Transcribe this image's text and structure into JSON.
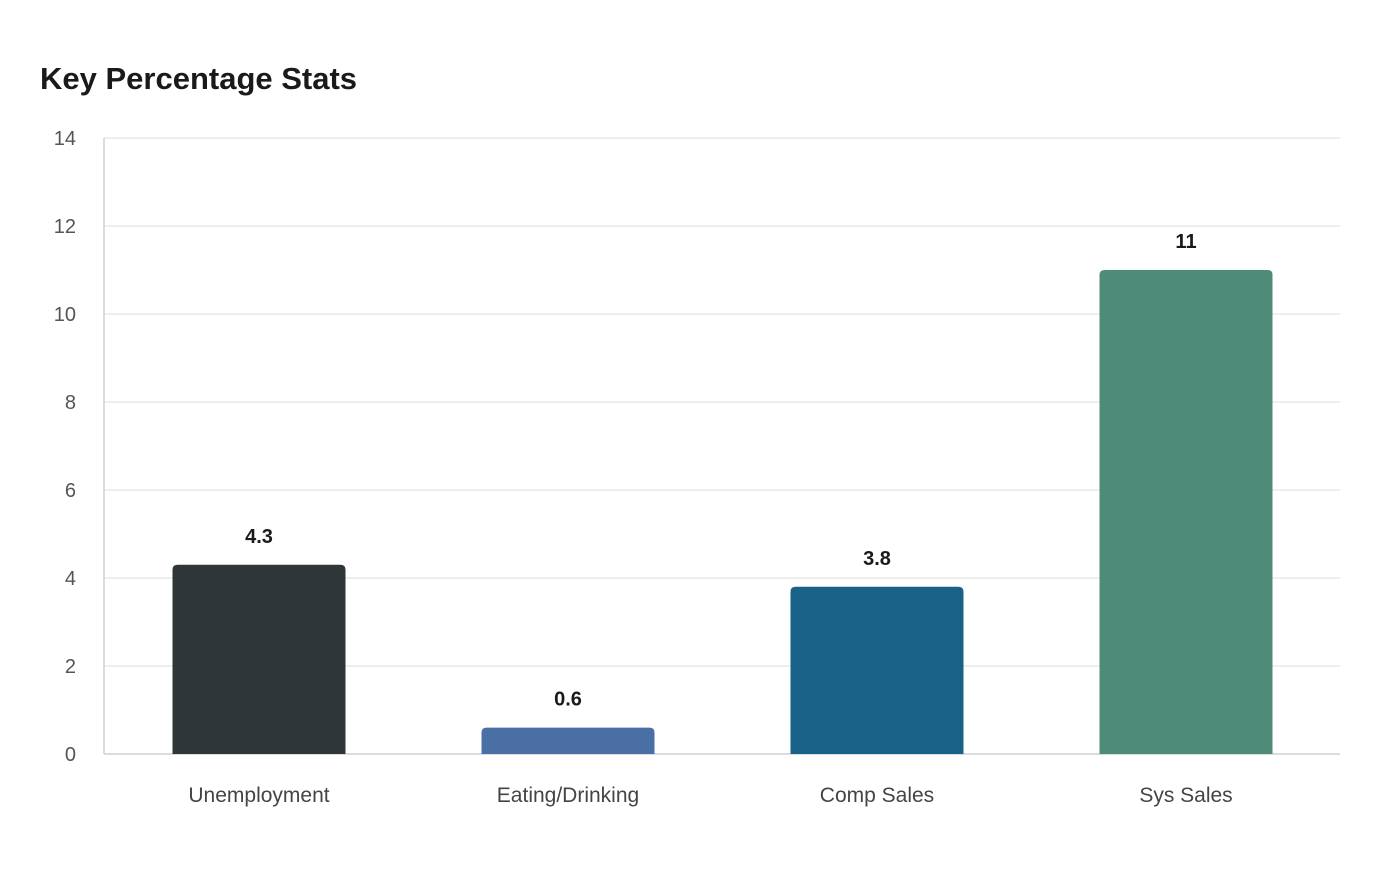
{
  "chart_data": {
    "type": "bar",
    "title": "Key Percentage Stats",
    "categories": [
      "Unemployment",
      "Eating/Drinking",
      "Comp Sales",
      "Sys Sales"
    ],
    "values": [
      4.3,
      0.6,
      3.8,
      11
    ],
    "value_labels": [
      "4.3",
      "0.6",
      "3.8",
      "11"
    ],
    "colors": [
      "#2e3638",
      "#4a6fa5",
      "#196186",
      "#4e8c79"
    ],
    "xlabel": "",
    "ylabel": "",
    "ylim": [
      0,
      14
    ],
    "yticks": [
      0,
      2,
      4,
      6,
      8,
      10,
      12,
      14
    ],
    "grid": true,
    "legend": "none"
  }
}
